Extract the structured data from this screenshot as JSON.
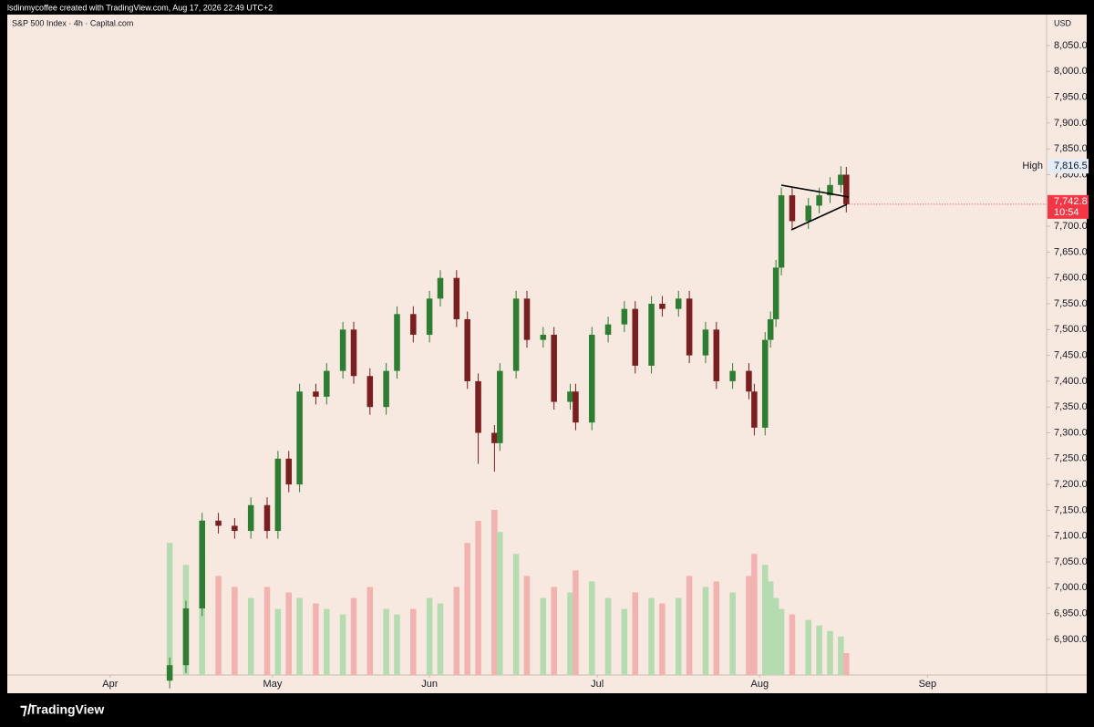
{
  "header": "lsdinmycoffee created with TradingView.com, Aug 17, 2026 22:49 UTC+2",
  "footer": "TradingView",
  "chart_data": {
    "type": "candlestick",
    "symbol": "S&P 500 Index · 4h · Capital.com",
    "currency": "USD",
    "up_color": "#2e7d32",
    "down_color": "#7a1f1f",
    "volume_up_color": "#b5dbb0",
    "volume_down_color": "#f2b3b0",
    "x": [
      11,
      14,
      17,
      20,
      23,
      26,
      29,
      31,
      33,
      35,
      38,
      40,
      43,
      45,
      48,
      51,
      53,
      56,
      59,
      61,
      64,
      66,
      68,
      71,
      72,
      75,
      77,
      80,
      82,
      85,
      86,
      89,
      92,
      95,
      97,
      100,
      102,
      105,
      107,
      110,
      112,
      115,
      118,
      119,
      121,
      122,
      123,
      124,
      126,
      129,
      131,
      133,
      135,
      136
    ],
    "open": [
      6820,
      6850,
      6960,
      7130,
      7120,
      7110,
      7160,
      7110,
      7250,
      7200,
      7380,
      7370,
      7420,
      7500,
      7410,
      7350,
      7420,
      7530,
      7490,
      7560,
      7600,
      7520,
      7400,
      7300,
      7280,
      7420,
      7560,
      7480,
      7490,
      7360,
      7380,
      7320,
      7490,
      7510,
      7540,
      7430,
      7550,
      7540,
      7560,
      7450,
      7500,
      7400,
      7420,
      7380,
      7310,
      7480,
      7520,
      7620,
      7760,
      7710,
      7740,
      7760,
      7780,
      7800
    ],
    "high": [
      6865,
      6975,
      7145,
      7145,
      7135,
      7175,
      7175,
      7265,
      7265,
      7395,
      7395,
      7435,
      7515,
      7515,
      7425,
      7435,
      7545,
      7545,
      7575,
      7615,
      7615,
      7535,
      7415,
      7315,
      7435,
      7575,
      7575,
      7505,
      7505,
      7395,
      7395,
      7505,
      7525,
      7555,
      7555,
      7565,
      7565,
      7575,
      7575,
      7515,
      7515,
      7435,
      7435,
      7395,
      7495,
      7535,
      7635,
      7775,
      7775,
      7755,
      7775,
      7795,
      7816.5,
      7815
    ],
    "low": [
      6805,
      6835,
      6945,
      7105,
      7095,
      7095,
      7095,
      7095,
      7185,
      7185,
      7355,
      7355,
      7405,
      7395,
      7335,
      7335,
      7405,
      7475,
      7475,
      7545,
      7505,
      7385,
      7240,
      7225,
      7265,
      7405,
      7465,
      7465,
      7345,
      7345,
      7305,
      7305,
      7475,
      7495,
      7415,
      7415,
      7525,
      7525,
      7435,
      7435,
      7385,
      7385,
      7365,
      7295,
      7295,
      7465,
      7505,
      7605,
      7695,
      7695,
      7725,
      7745,
      7765,
      7727
    ],
    "close": [
      6850,
      6960,
      7130,
      7120,
      7110,
      7160,
      7110,
      7250,
      7200,
      7380,
      7370,
      7420,
      7500,
      7410,
      7350,
      7420,
      7530,
      7490,
      7560,
      7600,
      7520,
      7400,
      7300,
      7280,
      7420,
      7560,
      7480,
      7490,
      7360,
      7380,
      7320,
      7490,
      7510,
      7540,
      7430,
      7550,
      7540,
      7560,
      7450,
      7500,
      7400,
      7420,
      7380,
      7310,
      7480,
      7520,
      7620,
      7760,
      7710,
      7740,
      7760,
      7780,
      7800,
      7742.8
    ],
    "volume": [
      120,
      100,
      110,
      90,
      80,
      70,
      80,
      60,
      75,
      70,
      65,
      60,
      55,
      70,
      80,
      60,
      55,
      60,
      70,
      65,
      80,
      120,
      140,
      150,
      130,
      110,
      90,
      70,
      80,
      75,
      95,
      85,
      70,
      60,
      75,
      70,
      65,
      70,
      90,
      80,
      85,
      75,
      90,
      110,
      100,
      85,
      70,
      60,
      55,
      50,
      45,
      40,
      35,
      20
    ],
    "volume_lim": [
      0,
      600
    ],
    "xlim": [
      -19,
      173
    ],
    "xticks": [
      {
        "value": 0,
        "label": "Apr"
      },
      {
        "value": 30,
        "label": "May"
      },
      {
        "value": 59,
        "label": "Jun"
      },
      {
        "value": 90,
        "label": "Jul"
      },
      {
        "value": 120,
        "label": "Aug"
      },
      {
        "value": 151,
        "label": "Sep"
      }
    ],
    "ylim": [
      6831,
      8110
    ],
    "yticks": [
      {
        "value": 6900,
        "label": "6,900.0"
      },
      {
        "value": 6950,
        "label": "6,950.0"
      },
      {
        "value": 7000,
        "label": "7,000.0"
      },
      {
        "value": 7050,
        "label": "7,050.0"
      },
      {
        "value": 7100,
        "label": "7,100.0"
      },
      {
        "value": 7150,
        "label": "7,150.0"
      },
      {
        "value": 7200,
        "label": "7,200.0"
      },
      {
        "value": 7250,
        "label": "7,250.0"
      },
      {
        "value": 7300,
        "label": "7,300.0"
      },
      {
        "value": 7350,
        "label": "7,350.0"
      },
      {
        "value": 7400,
        "label": "7,400.0"
      },
      {
        "value": 7450,
        "label": "7,450.0"
      },
      {
        "value": 7500,
        "label": "7,500.0"
      },
      {
        "value": 7550,
        "label": "7,550.0"
      },
      {
        "value": 7600,
        "label": "7,600.0"
      },
      {
        "value": 7650,
        "label": "7,650.0"
      },
      {
        "value": 7700,
        "label": "7,700.0"
      },
      {
        "value": 7750,
        "label": "7,750.0"
      },
      {
        "value": 7800,
        "label": "7,800.0"
      },
      {
        "value": 7850,
        "label": "7,850.0"
      },
      {
        "value": 7900,
        "label": "7,900.0"
      },
      {
        "value": 7950,
        "label": "7,950.0"
      },
      {
        "value": 8000,
        "label": "8,000.0"
      },
      {
        "value": 8050,
        "label": "8,050.0"
      }
    ],
    "high_marker": {
      "name": "High",
      "value": 7816.5,
      "label": "7,816.5"
    },
    "last_price": {
      "value": 7742.8,
      "label": "7,742.8",
      "countdown": "10:54",
      "color": "#f23645"
    }
  }
}
